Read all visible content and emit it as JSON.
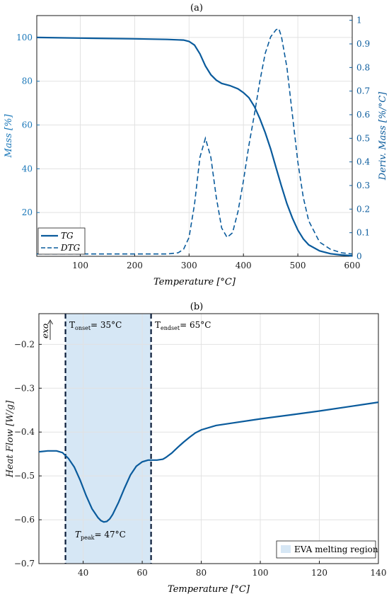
{
  "colors": {
    "curve": "#0a5b9c",
    "axis_left": "#1876b8",
    "axis_right": "#0a5b9c",
    "region": "#d6e7f5",
    "grid": "#e2e2e2",
    "annotation_line": "#0b1d3a"
  },
  "chart_data": [
    {
      "type": "line",
      "title": "(a)",
      "xlabel": "Temperature [°C]",
      "ylabel": "Mass [%]",
      "y2label": "Deriv. Mass [%/°C]",
      "xlim": [
        20,
        600
      ],
      "ylim": [
        0,
        110
      ],
      "y2lim": [
        0,
        1.02
      ],
      "xticks": [
        100,
        200,
        300,
        400,
        500,
        600
      ],
      "yticks": [
        20,
        40,
        60,
        80,
        100
      ],
      "y2ticks": [
        0,
        0.1,
        0.2,
        0.3,
        0.4,
        0.5,
        0.6,
        0.7,
        0.8,
        0.9,
        1
      ],
      "grid": true,
      "legend_position": "bottom-left",
      "series": [
        {
          "name": "TG",
          "axis": "left",
          "style": "solid",
          "x": [
            20,
            100,
            200,
            260,
            290,
            300,
            310,
            320,
            330,
            340,
            350,
            360,
            375,
            390,
            400,
            410,
            420,
            430,
            440,
            450,
            460,
            470,
            480,
            490,
            500,
            510,
            520,
            540,
            560,
            580,
            600
          ],
          "y": [
            100,
            99.7,
            99.4,
            99.1,
            98.8,
            98.2,
            96.5,
            92.5,
            87,
            83,
            80.5,
            79,
            78,
            76.5,
            74.8,
            72.5,
            68.5,
            63,
            56.5,
            49,
            40.5,
            32,
            24,
            17.5,
            12,
            8,
            5.2,
            2.5,
            1.2,
            0.6,
            0.3
          ]
        },
        {
          "name": "DTG",
          "axis": "right",
          "style": "dashed",
          "x": [
            20,
            200,
            260,
            280,
            290,
            300,
            310,
            320,
            330,
            340,
            350,
            360,
            370,
            380,
            390,
            400,
            410,
            420,
            430,
            440,
            450,
            460,
            465,
            470,
            480,
            490,
            500,
            510,
            520,
            540,
            560,
            580,
            600
          ],
          "y": [
            0.01,
            0.01,
            0.01,
            0.015,
            0.03,
            0.08,
            0.22,
            0.42,
            0.5,
            0.42,
            0.25,
            0.12,
            0.08,
            0.1,
            0.19,
            0.32,
            0.47,
            0.6,
            0.74,
            0.86,
            0.93,
            0.96,
            0.965,
            0.93,
            0.8,
            0.6,
            0.4,
            0.25,
            0.15,
            0.06,
            0.03,
            0.015,
            0.01
          ]
        }
      ]
    },
    {
      "type": "line",
      "title": "(b)",
      "xlabel": "Temperature [°C]",
      "ylabel": "Heat Flow [W/g]",
      "xlim": [
        25,
        140
      ],
      "ylim": [
        -0.7,
        -0.13
      ],
      "xticks": [
        40,
        60,
        80,
        100,
        120,
        140
      ],
      "yticks": [
        -0.7,
        -0.6,
        -0.5,
        -0.4,
        -0.3,
        -0.2
      ],
      "grid": true,
      "legend_position": "bottom-right",
      "region": {
        "x0": 34,
        "x1": 63,
        "name": "EVA melting region"
      },
      "annotations": {
        "exo": "exo",
        "onset": "T",
        "onset_sub": "onset",
        "onset_val": "= 35°C",
        "endset": "T",
        "endset_sub": "endset",
        "endset_val": "= 65°C",
        "peak": "T",
        "peak_sub": "peak",
        "peak_val": "= 47°C"
      },
      "series": [
        {
          "name": "",
          "style": "solid",
          "x": [
            25,
            28,
            31,
            33,
            35,
            37,
            39,
            41,
            43,
            45,
            46,
            47,
            48,
            49,
            50,
            52,
            54,
            56,
            58,
            60,
            62,
            63,
            65,
            67,
            68,
            70,
            72,
            74,
            76,
            78,
            80,
            85,
            90,
            100,
            110,
            120,
            130,
            140
          ],
          "y": [
            -0.445,
            -0.443,
            -0.443,
            -0.447,
            -0.46,
            -0.48,
            -0.51,
            -0.545,
            -0.575,
            -0.595,
            -0.602,
            -0.605,
            -0.604,
            -0.598,
            -0.588,
            -0.56,
            -0.528,
            -0.498,
            -0.478,
            -0.468,
            -0.464,
            -0.464,
            -0.464,
            -0.462,
            -0.458,
            -0.448,
            -0.435,
            -0.423,
            -0.412,
            -0.402,
            -0.395,
            -0.385,
            -0.38,
            -0.37,
            -0.361,
            -0.352,
            -0.342,
            -0.332
          ]
        }
      ]
    }
  ]
}
